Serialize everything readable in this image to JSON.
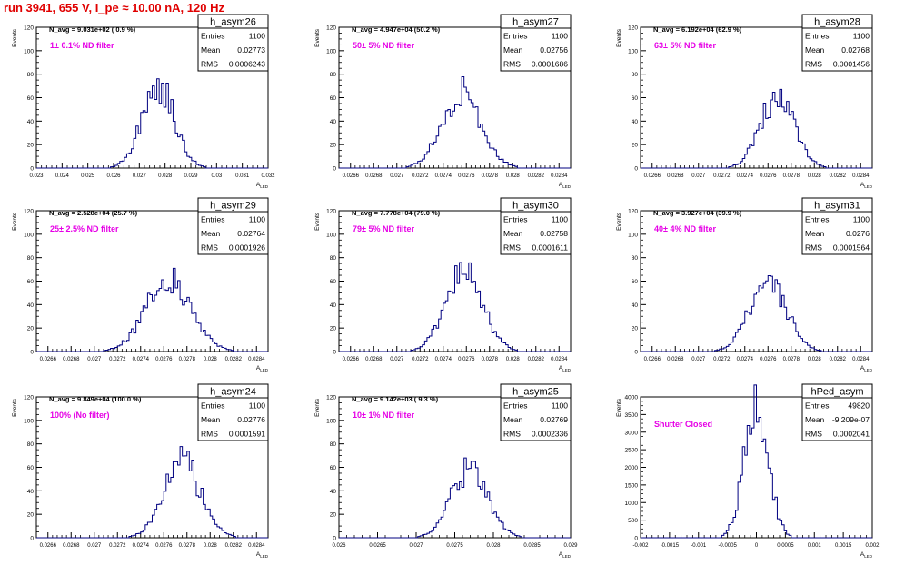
{
  "page": {
    "title": "run 3941,   655 V, I_pe ≈ 10.00 nA, 120 Hz"
  },
  "colors": {
    "hist": "#000080",
    "annotation": "#e600e6",
    "title": "#e00000",
    "frame": "#000000"
  },
  "chart_data": [
    {
      "type": "histogram",
      "name": "h_asym26",
      "stats": {
        "Entries": "1100",
        "Mean": "0.02773",
        "RMS": "0.0006243"
      },
      "navg": "N_avg = 9.031e+02 ( 0.9 %)",
      "annotation": "1± 0.1% ND filter",
      "ylabel": "Events",
      "xlabel": "A_LED",
      "xlim": [
        0.023,
        0.032
      ],
      "ylim": [
        0,
        120
      ],
      "xticks": [
        "0.023",
        "0.024",
        "0.025",
        "0.026",
        "0.027",
        "0.028",
        "0.029",
        "0.03",
        "0.031",
        "0.032"
      ],
      "yticks": [
        "0",
        "20",
        "40",
        "60",
        "80",
        "100",
        "120"
      ],
      "profile": {
        "mean": 0.02773,
        "rms": 0.0006243,
        "peak": 70
      }
    },
    {
      "type": "histogram",
      "name": "h_asym27",
      "stats": {
        "Entries": "1100",
        "Mean": "0.02756",
        "RMS": "0.0001686"
      },
      "navg": "N_avg = 4.947e+04 (50.2 %)",
      "annotation": "50± 5% ND filter",
      "ylabel": "Events",
      "xlabel": "A_LED",
      "xlim": [
        0.0265,
        0.0285
      ],
      "ylim": [
        0,
        120
      ],
      "xticks": [
        "0.0266",
        "0.0268",
        "0.027",
        "0.0272",
        "0.0274",
        "0.0276",
        "0.0278",
        "0.028",
        "0.0282",
        "0.0284"
      ],
      "yticks": [
        "0",
        "20",
        "40",
        "60",
        "80",
        "100",
        "120"
      ],
      "profile": {
        "mean": 0.02756,
        "rms": 0.0001686,
        "peak": 64
      }
    },
    {
      "type": "histogram",
      "name": "h_asym28",
      "stats": {
        "Entries": "1100",
        "Mean": "0.02768",
        "RMS": "0.0001456"
      },
      "navg": "N_avg = 6.192e+04 (62.9 %)",
      "annotation": "63± 5% ND filter",
      "ylabel": "Events",
      "xlabel": "A_LED",
      "xlim": [
        0.0265,
        0.0285
      ],
      "ylim": [
        0,
        120
      ],
      "xticks": [
        "0.0266",
        "0.0268",
        "0.027",
        "0.0272",
        "0.0274",
        "0.0276",
        "0.0278",
        "0.028",
        "0.0282",
        "0.0284"
      ],
      "yticks": [
        "0",
        "20",
        "40",
        "60",
        "80",
        "100",
        "120"
      ],
      "profile": {
        "mean": 0.02768,
        "rms": 0.0001456,
        "peak": 61
      }
    },
    {
      "type": "histogram",
      "name": "h_asym29",
      "stats": {
        "Entries": "1100",
        "Mean": "0.02764",
        "RMS": "0.0001926"
      },
      "navg": "N_avg = 2.528e+04 (25.7 %)",
      "annotation": "25± 2.5% ND filter",
      "ylabel": "Events",
      "xlabel": "A_LED",
      "xlim": [
        0.0265,
        0.0285
      ],
      "ylim": [
        0,
        120
      ],
      "xticks": [
        "0.0266",
        "0.0268",
        "0.027",
        "0.0272",
        "0.0274",
        "0.0276",
        "0.0278",
        "0.028",
        "0.0282",
        "0.0284"
      ],
      "yticks": [
        "0",
        "20",
        "40",
        "60",
        "80",
        "100",
        "120"
      ],
      "profile": {
        "mean": 0.02764,
        "rms": 0.0001926,
        "peak": 61
      }
    },
    {
      "type": "histogram",
      "name": "h_asym30",
      "stats": {
        "Entries": "1100",
        "Mean": "0.02758",
        "RMS": "0.0001611"
      },
      "navg": "N_avg = 7.778e+04 (79.0 %)",
      "annotation": "79± 5% ND filter",
      "ylabel": "Events",
      "xlabel": "A_LED",
      "xlim": [
        0.0265,
        0.0285
      ],
      "ylim": [
        0,
        120
      ],
      "xticks": [
        "0.0266",
        "0.0268",
        "0.027",
        "0.0272",
        "0.0274",
        "0.0276",
        "0.0278",
        "0.028",
        "0.0282",
        "0.0284"
      ],
      "yticks": [
        "0",
        "20",
        "40",
        "60",
        "80",
        "100",
        "120"
      ],
      "profile": {
        "mean": 0.02758,
        "rms": 0.0001611,
        "peak": 66
      }
    },
    {
      "type": "histogram",
      "name": "h_asym31",
      "stats": {
        "Entries": "1100",
        "Mean": "0.0276",
        "RMS": "0.0001564"
      },
      "navg": "N_avg = 3.927e+04 (39.9 %)",
      "annotation": "40± 4% ND filter",
      "ylabel": "Events",
      "xlabel": "A_LED",
      "xlim": [
        0.0265,
        0.0285
      ],
      "ylim": [
        0,
        120
      ],
      "xticks": [
        "0.0266",
        "0.0268",
        "0.027",
        "0.0272",
        "0.0274",
        "0.0276",
        "0.0278",
        "0.028",
        "0.0282",
        "0.0284"
      ],
      "yticks": [
        "0",
        "20",
        "40",
        "60",
        "80",
        "100",
        "120"
      ],
      "profile": {
        "mean": 0.0276,
        "rms": 0.0001564,
        "peak": 62
      }
    },
    {
      "type": "histogram",
      "name": "h_asym24",
      "stats": {
        "Entries": "1100",
        "Mean": "0.02776",
        "RMS": "0.0001591"
      },
      "navg": "N_avg = 9.849e+04 (100.0 %)",
      "annotation": "100% (No filter)",
      "ylabel": "Events",
      "xlabel": "A_LED",
      "xlim": [
        0.0265,
        0.0285
      ],
      "ylim": [
        0,
        120
      ],
      "xticks": [
        "0.0266",
        "0.0268",
        "0.027",
        "0.0272",
        "0.0274",
        "0.0276",
        "0.0278",
        "0.028",
        "0.0282",
        "0.0284"
      ],
      "yticks": [
        "0",
        "20",
        "40",
        "60",
        "80",
        "100",
        "120"
      ],
      "profile": {
        "mean": 0.02776,
        "rms": 0.0001591,
        "peak": 64
      }
    },
    {
      "type": "histogram",
      "name": "h_asym25",
      "stats": {
        "Entries": "1100",
        "Mean": "0.02769",
        "RMS": "0.0002336"
      },
      "navg": "N_avg = 9.142e+03 ( 9.3 %)",
      "annotation": "10± 1% ND filter",
      "ylabel": "Events",
      "xlabel": "A_LED",
      "xlim": [
        0.026,
        0.029
      ],
      "ylim": [
        0,
        120
      ],
      "xticks": [
        "0.026",
        "0.0265",
        "0.027",
        "0.0275",
        "0.028",
        "0.0285",
        "0.029"
      ],
      "yticks": [
        "0",
        "20",
        "40",
        "60",
        "80",
        "100",
        "120"
      ],
      "profile": {
        "mean": 0.02769,
        "rms": 0.0002336,
        "peak": 58
      }
    },
    {
      "type": "histogram",
      "name": "hPed_asym",
      "stats": {
        "Entries": "49820",
        "Mean": "-9.209e-07",
        "RMS": "0.0002041"
      },
      "navg": "",
      "annotation": "Shutter Closed",
      "ylabel": "Events",
      "xlabel": "A_LED",
      "xlim": [
        -0.002,
        0.002
      ],
      "ylim": [
        0,
        4000
      ],
      "xticks": [
        "-0.002",
        "-0.0015",
        "-0.001",
        "-0.0005",
        "0",
        "0.0005",
        "0.001",
        "0.0015",
        "0.002"
      ],
      "yticks": [
        "0",
        "500",
        "1000",
        "1500",
        "2000",
        "2500",
        "3000",
        "3500",
        "4000"
      ],
      "profile": {
        "mean": 0.0,
        "rms": 0.0002041,
        "peak": 3900
      }
    }
  ]
}
